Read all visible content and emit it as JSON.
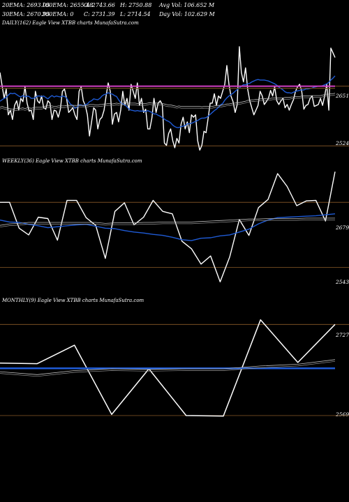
{
  "header": {
    "row1": [
      {
        "id": "ema20",
        "text": "20EMA: 2693.05"
      },
      {
        "id": "ema100",
        "text": "100EMA: 2655.48"
      },
      {
        "id": "open",
        "text": "O: 2743.66"
      },
      {
        "id": "high",
        "text": "H: 2750.88"
      },
      {
        "id": "avgvol",
        "text": "Avg Vol: 106.652  M"
      }
    ],
    "row2": [
      {
        "id": "ema30",
        "text": "30EMA: 2670.95"
      },
      {
        "id": "ema200",
        "text": "200EMA: 0"
      },
      {
        "id": "close",
        "text": "C: 2731.39"
      },
      {
        "id": "low",
        "text": "L: 2714.54"
      },
      {
        "id": "dayvol",
        "text": "Day Vol: 102.629  M"
      }
    ]
  },
  "colors": {
    "background": "#000000",
    "price": "#ffffff",
    "ema_blue": "#1f5bd6",
    "level_line": "#8a5a28",
    "magenta_line": "#d23fc3",
    "ema_dark": "#6b4a1f"
  },
  "chart_data": [
    {
      "type": "line",
      "title": "DAILY(162) Eagle   View  XTBB charts MunafaSutra.com",
      "level_labels": [
        "2651",
        "2524"
      ],
      "series": [
        {
          "values": [
            2680,
            2652,
            2625,
            2645,
            2590,
            2600,
            2580,
            2610,
            2620,
            2600,
            2625,
            2618,
            2650,
            2615,
            2598,
            2600,
            2580,
            2640,
            2620,
            2615,
            2630,
            2605,
            2602,
            2620,
            2615,
            2580,
            2600,
            2598,
            2585,
            2602,
            2640,
            2645,
            2625,
            2595,
            2600,
            2605,
            2590,
            2580,
            2640,
            2650,
            2620,
            2610,
            2590,
            2545,
            2575,
            2605,
            2600,
            2560,
            2580,
            2585,
            2600,
            2630,
            2658,
            2640,
            2570,
            2592,
            2595,
            2575,
            2600,
            2640,
            2610,
            2625,
            2600,
            2655,
            2640,
            2625,
            2658,
            2610,
            2625,
            2595,
            2602,
            2560,
            2560,
            2583,
            2625,
            2595,
            2615,
            2620,
            2612,
            2530,
            2525,
            2550,
            2560,
            2535,
            2520,
            2540,
            2530,
            2570,
            2585,
            2560,
            2575,
            2552,
            2590,
            2585,
            2590,
            2535,
            2515,
            2525,
            2555,
            2552,
            2582,
            2615,
            2615,
            2635,
            2610,
            2630,
            2625,
            2640,
            2655,
            2695,
            2655,
            2630,
            2618,
            2595,
            2612,
            2735,
            2680,
            2660,
            2690,
            2645,
            2620,
            2605,
            2590,
            2600,
            2610,
            2640,
            2630,
            2612,
            2618,
            2625,
            2642,
            2630,
            2650,
            2620,
            2612,
            2620,
            2625,
            2605,
            2612,
            2600,
            2612,
            2622,
            2640,
            2650,
            2655,
            2640,
            2602,
            2610,
            2612,
            2625,
            2630,
            2608,
            2610,
            2612,
            2625,
            2610,
            2630,
            2655,
            2600,
            2732,
            2722,
            2712
          ]
        },
        {
          "values": [
            2619,
            2622,
            2625,
            2627,
            2632,
            2636,
            2635,
            2636,
            2633,
            2630,
            2628,
            2631,
            2628,
            2630,
            2629,
            2625,
            2625,
            2627,
            2630,
            2630,
            2629,
            2630,
            2627,
            2624,
            2628,
            2631,
            2628,
            2630,
            2629,
            2628,
            2630,
            2629,
            2626,
            2618,
            2612,
            2610,
            2604,
            2606,
            2611,
            2611,
            2609,
            2612,
            2613,
            2618,
            2620,
            2624,
            2623,
            2622,
            2625,
            2630,
            2633,
            2634,
            2637,
            2635,
            2634,
            2631,
            2629,
            2622,
            2616,
            2613,
            2611,
            2607,
            2602,
            2600,
            2599,
            2598,
            2599,
            2598,
            2598,
            2598,
            2597,
            2599,
            2597,
            2595,
            2592,
            2592,
            2589,
            2587,
            2584,
            2581,
            2578,
            2576,
            2573,
            2568,
            2565,
            2563,
            2563,
            2565,
            2566,
            2567,
            2571,
            2571,
            2572,
            2574,
            2576,
            2578,
            2581,
            2583,
            2583,
            2584,
            2587,
            2591,
            2595,
            2599,
            2602,
            2606,
            2611,
            2614,
            2621,
            2626,
            2630,
            2633,
            2636,
            2640,
            2644,
            2647,
            2651,
            2654,
            2654,
            2656,
            2657,
            2660,
            2662,
            2664,
            2665,
            2664,
            2664,
            2664,
            2663,
            2662,
            2660,
            2658,
            2656,
            2653,
            2649,
            2646,
            2643,
            2639,
            2637,
            2637,
            2636,
            2638,
            2640,
            2641,
            2642,
            2643,
            2643,
            2645,
            2645,
            2646,
            2647,
            2649,
            2650,
            2651,
            2651,
            2652,
            2654,
            2656,
            2659,
            2664,
            2668,
            2673
          ]
        },
        {
          "values": [
            2606,
            2608,
            2606,
            2605,
            2604,
            2603,
            2602,
            2603,
            2603,
            2604,
            2604,
            2605,
            2603,
            2605,
            2605,
            2604,
            2605,
            2606,
            2606,
            2606,
            2606,
            2607,
            2609,
            2609,
            2609,
            2609,
            2608,
            2608,
            2609,
            2609,
            2609,
            2609,
            2610,
            2610,
            2610,
            2610,
            2610,
            2610,
            2610,
            2610,
            2610,
            2610,
            2610,
            2612,
            2612,
            2612,
            2611,
            2611,
            2612,
            2612,
            2613,
            2613,
            2614,
            2614,
            2613,
            2614,
            2615,
            2614,
            2615,
            2615,
            2616,
            2615,
            2615,
            2615,
            2615,
            2615,
            2614,
            2614,
            2614,
            2614,
            2614,
            2615,
            2616,
            2615,
            2615,
            2615,
            2615,
            2615,
            2614,
            2613,
            2612,
            2611,
            2611,
            2610,
            2609,
            2608,
            2609,
            2608,
            2608,
            2608,
            2608,
            2608,
            2608,
            2608,
            2608,
            2608,
            2608,
            2607,
            2608,
            2608,
            2608,
            2608,
            2608,
            2609,
            2610,
            2610,
            2610,
            2611,
            2612,
            2613,
            2613,
            2614,
            2615,
            2615,
            2616,
            2616,
            2617,
            2618,
            2619,
            2621,
            2621,
            2622,
            2622,
            2623,
            2623,
            2624,
            2624,
            2624,
            2625,
            2625,
            2625,
            2626,
            2626,
            2626,
            2626,
            2626,
            2626,
            2627,
            2627,
            2627,
            2628,
            2628,
            2629,
            2629,
            2629,
            2630,
            2630,
            2630,
            2630,
            2630,
            2631,
            2631,
            2631,
            2631,
            2631,
            2632,
            2633,
            2634,
            2634,
            2635,
            2635,
            2636
          ]
        },
        {
          "values": [
            2651,
            2651,
            2651,
            2651,
            2651,
            2651,
            2651,
            2651,
            2651,
            2651,
            2651,
            2651,
            2651,
            2651,
            2651,
            2651,
            2651,
            2651,
            2651,
            2651,
            2651,
            2651,
            2651,
            2651,
            2651,
            2651,
            2651,
            2651,
            2651,
            2651,
            2651,
            2651,
            2651,
            2651,
            2651,
            2651,
            2651,
            2651,
            2651,
            2651,
            2651,
            2651,
            2651,
            2651,
            2651,
            2651,
            2651,
            2651,
            2651,
            2651,
            2651,
            2651,
            2651,
            2651,
            2651,
            2651,
            2651,
            2651,
            2651,
            2651,
            2651,
            2651,
            2651,
            2651,
            2651,
            2651,
            2651,
            2651,
            2651,
            2651,
            2651,
            2651,
            2651,
            2651,
            2651,
            2651,
            2651,
            2651,
            2651,
            2651,
            2651,
            2651,
            2651,
            2651,
            2651,
            2651,
            2651,
            2651,
            2651,
            2651,
            2651,
            2651,
            2651,
            2651,
            2651,
            2651,
            2651,
            2651,
            2651,
            2651,
            2651,
            2651,
            2651,
            2651,
            2651,
            2651,
            2651,
            2651,
            2651,
            2651,
            2651,
            2651,
            2651,
            2651,
            2651,
            2651,
            2651,
            2651,
            2651,
            2651,
            2651,
            2651,
            2651,
            2651,
            2651,
            2651,
            2651,
            2651,
            2651,
            2651,
            2651,
            2651,
            2651,
            2651,
            2651,
            2651,
            2651,
            2651,
            2651,
            2651,
            2651,
            2651,
            2651,
            2651,
            2651,
            2651,
            2651,
            2651,
            2651,
            2651,
            2651,
            2651,
            2651,
            2651,
            2651,
            2651,
            2651,
            2651,
            2651,
            2651,
            2651,
            2651
          ]
        }
      ],
      "ylim": [
        2505,
        2775
      ]
    },
    {
      "type": "line",
      "title": "WEEKLY(36) Eagle   View  XTBB charts MunafaSutra.com",
      "level_labels": [
        "2679",
        "2543"
      ],
      "series": [
        {
          "values": [
            2679,
            2679,
            2625,
            2611,
            2648,
            2645,
            2600,
            2683,
            2683,
            2647,
            2631,
            2562,
            2660,
            2678,
            2632,
            2648,
            2683,
            2660,
            2655,
            2598,
            2582,
            2550,
            2567,
            2513,
            2565,
            2643,
            2610,
            2668,
            2685,
            2739,
            2712,
            2672,
            2682,
            2683,
            2640,
            2743
          ]
        },
        {
          "values": [
            2642,
            2638,
            2637,
            2633,
            2630,
            2626,
            2628,
            2630,
            2632,
            2633,
            2629,
            2625,
            2624,
            2620,
            2617,
            2615,
            2612,
            2610,
            2606,
            2601,
            2599,
            2604,
            2605,
            2609,
            2611,
            2617,
            2623,
            2634,
            2642,
            2647,
            2648,
            2649,
            2650,
            2651,
            2653,
            2655
          ]
        },
        {
          "values": [
            2631,
            2634,
            2635,
            2637,
            2637,
            2637,
            2637,
            2637,
            2637,
            2637,
            2637,
            2635,
            2636,
            2636,
            2636,
            2637,
            2637,
            2638,
            2638,
            2638,
            2638,
            2639,
            2640,
            2641,
            2642,
            2643,
            2644,
            2644,
            2645,
            2645,
            2645,
            2645,
            2646,
            2646,
            2646,
            2646
          ]
        }
      ],
      "ylim": [
        2490,
        2755
      ]
    },
    {
      "type": "line",
      "title": "MONTHLY(9) Eagle   View  XTBB charts MunafaSutra.com",
      "level_labels": [
        "2727",
        "2569"
      ],
      "series": [
        {
          "values": [
            2660,
            2659,
            2691,
            2571,
            2650,
            2569,
            2568,
            2735,
            2661,
            2727
          ]
        },
        {
          "values": [
            2651,
            2651,
            2651,
            2651,
            2651,
            2651,
            2651,
            2651,
            2651,
            2651
          ]
        },
        {
          "values": [
            2645,
            2640,
            2647,
            2650,
            2649,
            2650,
            2650,
            2655,
            2658,
            2666
          ]
        }
      ],
      "ylim": [
        2540,
        2760
      ]
    }
  ]
}
